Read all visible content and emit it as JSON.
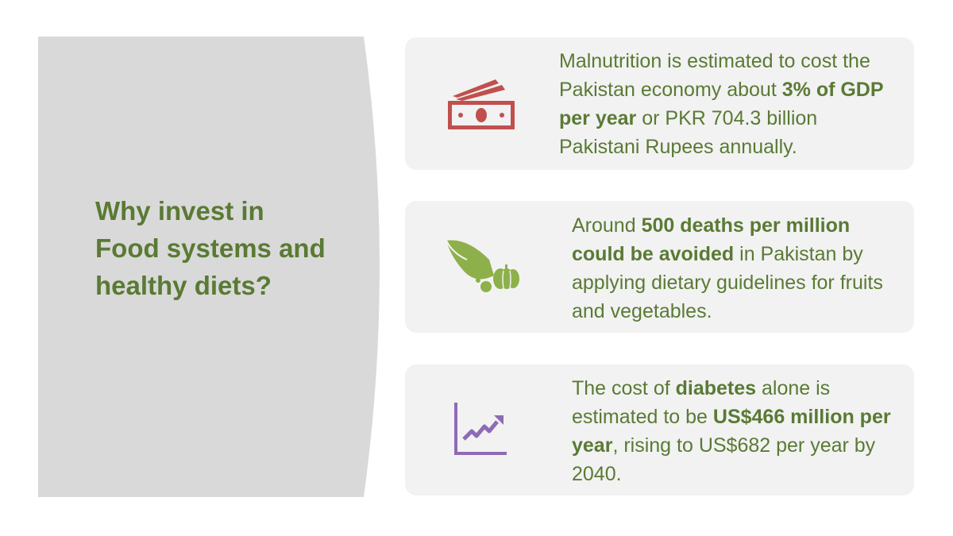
{
  "panel": {
    "title": "Why invest in Food systems and healthy diets?",
    "background_color": "#d9d9d9"
  },
  "colors": {
    "text_green": "#5a7a34",
    "card_background": "#f2f2f2",
    "money_icon": "#c0504d",
    "cornucopia_icon": "#8db04a",
    "chart_icon": "#8e6bb4"
  },
  "cards": [
    {
      "icon": "money-icon",
      "parts": [
        {
          "text": "Malnutrition is estimated to cost the Pakistan economy about ",
          "bold": false
        },
        {
          "text": "3% of GDP per year",
          "bold": true
        },
        {
          "text": " or PKR 704.3 billion Pakistani Rupees annually.",
          "bold": false
        }
      ]
    },
    {
      "icon": "cornucopia-icon",
      "parts": [
        {
          "text": "Around ",
          "bold": false
        },
        {
          "text": "500 deaths per million could be avoided",
          "bold": true
        },
        {
          "text": " in Pakistan by applying dietary guidelines for fruits and vegetables.",
          "bold": false
        }
      ]
    },
    {
      "icon": "line-chart-icon",
      "parts": [
        {
          "text": "The cost of ",
          "bold": false
        },
        {
          "text": "diabetes",
          "bold": true
        },
        {
          "text": " alone is estimated to be ",
          "bold": false
        },
        {
          "text": "US$466 million per year",
          "bold": true
        },
        {
          "text": ", rising to US$682 per year by 2040.",
          "bold": false
        }
      ]
    }
  ]
}
